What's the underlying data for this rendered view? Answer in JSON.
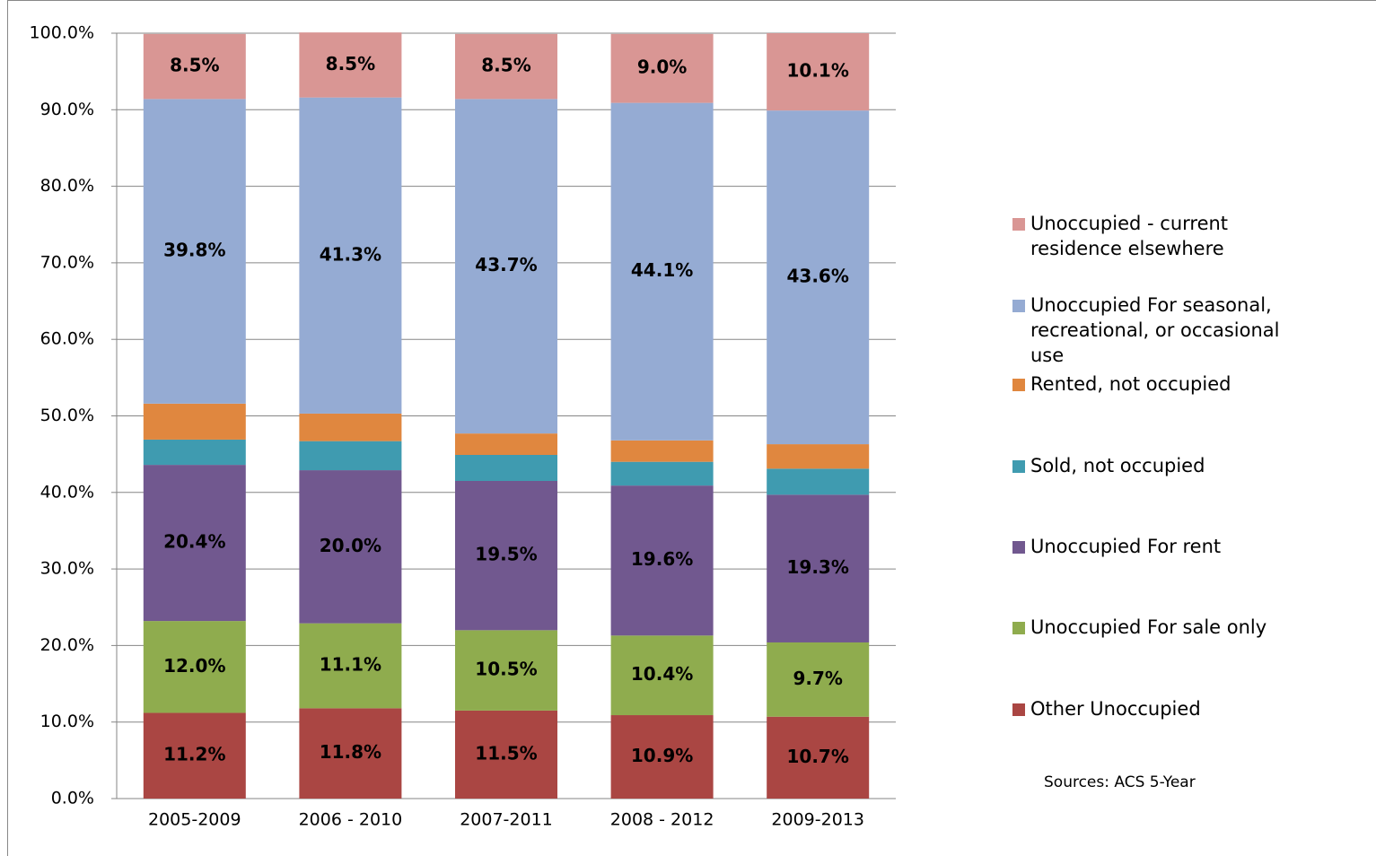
{
  "chart_data": {
    "type": "stacked-bar",
    "categories": [
      "2005-2009",
      "2006 - 2010",
      "2007-2011",
      "2008 - 2012",
      "2009-2013"
    ],
    "series": [
      {
        "name": "Other Unoccupied",
        "color": "#aa4643",
        "values": [
          11.2,
          11.8,
          11.5,
          10.9,
          10.7
        ],
        "value_labels": [
          "11.2%",
          "11.8%",
          "11.5%",
          "10.9%",
          "10.7%"
        ]
      },
      {
        "name": "Unoccupied For sale only",
        "color": "#8fac4e",
        "values": [
          12.0,
          11.1,
          10.5,
          10.4,
          9.7
        ],
        "value_labels": [
          "12.0%",
          "11.1%",
          "10.5%",
          "10.4%",
          "9.7%"
        ]
      },
      {
        "name": "Unoccupied For rent",
        "color": "#71588f",
        "values": [
          20.4,
          20.0,
          19.5,
          19.6,
          19.3
        ],
        "value_labels": [
          "20.4%",
          "20.0%",
          "19.5%",
          "19.6%",
          "19.3%"
        ]
      },
      {
        "name": "Sold, not occupied",
        "color": "#3f9bb0",
        "values": [
          3.3,
          3.8,
          3.4,
          3.1,
          3.4
        ]
      },
      {
        "name": "Rented, not occupied",
        "color": "#e0873f",
        "values": [
          4.7,
          3.6,
          2.8,
          2.8,
          3.2
        ]
      },
      {
        "name": "Unoccupied For seasonal, recreational, or occasional use",
        "color": "#95abd3",
        "values": [
          39.8,
          41.3,
          43.7,
          44.1,
          43.6
        ],
        "value_labels": [
          "39.8%",
          "41.3%",
          "43.7%",
          "44.1%",
          "43.6%"
        ]
      },
      {
        "name": "Unoccupied - current residence elsewhere",
        "color": "#d99694",
        "values": [
          8.5,
          8.5,
          8.5,
          9.0,
          10.1
        ],
        "value_labels": [
          "8.5%",
          "8.5%",
          "8.5%",
          "9.0%",
          "10.1%"
        ]
      }
    ],
    "ylim": [
      0,
      100
    ],
    "yticks": [
      {
        "value": 0,
        "label": "0.0%"
      },
      {
        "value": 10,
        "label": "10.0%"
      },
      {
        "value": 20,
        "label": "20.0%"
      },
      {
        "value": 30,
        "label": "30.0%"
      },
      {
        "value": 40,
        "label": "40.0%"
      },
      {
        "value": 50,
        "label": "50.0%"
      },
      {
        "value": 60,
        "label": "60.0%"
      },
      {
        "value": 70,
        "label": "70.0%"
      },
      {
        "value": 80,
        "label": "80.0%"
      },
      {
        "value": 90,
        "label": "90.0%"
      },
      {
        "value": 100,
        "label": "100.0%"
      }
    ],
    "grid": true,
    "legend": "right",
    "source": "Sources:  ACS 5-Year"
  }
}
